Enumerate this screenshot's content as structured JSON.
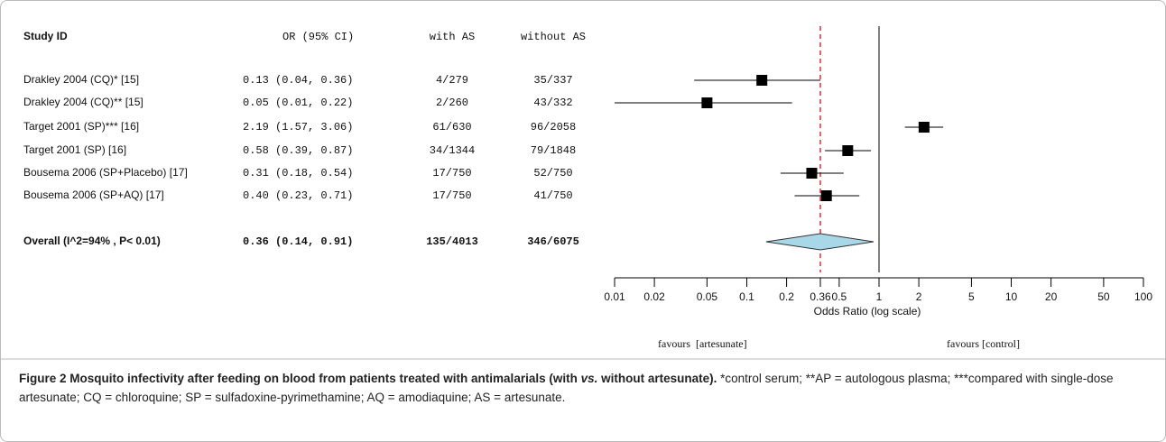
{
  "chart_data": {
    "type": "forest",
    "columns": [
      "Study ID",
      "OR (95% CI)",
      "with AS",
      "without AS"
    ],
    "categories": [
      "Drakley 2004 (CQ)* [15]",
      "Drakley 2004 (CQ)** [15]",
      "Target 2001 (SP)*** [16]",
      "Target 2001 (SP) [16]",
      "Bousema 2006 (SP+Placebo) [17]",
      "Bousema 2006 (SP+AQ) [17]"
    ],
    "values": [
      0.13,
      0.05,
      2.19,
      0.58,
      0.31,
      0.4
    ],
    "ci_low": [
      0.04,
      0.01,
      1.57,
      0.39,
      0.18,
      0.23
    ],
    "ci_high": [
      0.36,
      0.22,
      3.06,
      0.87,
      0.54,
      0.71
    ],
    "value_labels": [
      "0.13 (0.04, 0.36)",
      "0.05 (0.01, 0.22)",
      "2.19 (1.57, 3.06)",
      "0.58 (0.39, 0.87)",
      "0.31 (0.18, 0.54)",
      "0.40 (0.23, 0.71)"
    ],
    "with_as": [
      "4/279",
      "2/260",
      "61/630",
      "34/1344",
      "17/750",
      "17/750"
    ],
    "without_as": [
      "35/337",
      "43/332",
      "96/2058",
      "79/1848",
      "52/750",
      "41/750"
    ],
    "overall": {
      "label": "Overall (I^2=94% , P< 0.01)",
      "value": 0.36,
      "ci_low": 0.14,
      "ci_high": 0.91,
      "value_label": "0.36 (0.14, 0.91)",
      "with_as": "135/4013",
      "without_as": "346/6075"
    },
    "null_value": 1,
    "log_scale": true,
    "xlim": [
      0.01,
      100
    ],
    "xticks": [
      0.01,
      0.02,
      0.05,
      0.1,
      0.2,
      0.36,
      0.5,
      1,
      2,
      5,
      10,
      20,
      50,
      100
    ],
    "xlabel": "Odds Ratio (log scale)",
    "annotations": [
      "favours  [artesunate]",
      "favours [control]"
    ],
    "marker_color": "#000000",
    "diamond_color": "#a8d8e8",
    "overall_line_color": "#e03030"
  },
  "caption": {
    "label": "Figure 2",
    "title_before": "Mosquito infectivity after feeding on blood from patients treated with antimalarials (with ",
    "title_italic": "vs.",
    "title_after": " without artesunate).",
    "text": "*control serum; **AP = autologous plasma; ***compared with single-dose artesunate; CQ = chloroquine; SP = sulfadoxine-pyrimethamine; AQ = amodiaquine; AS = artesunate."
  }
}
